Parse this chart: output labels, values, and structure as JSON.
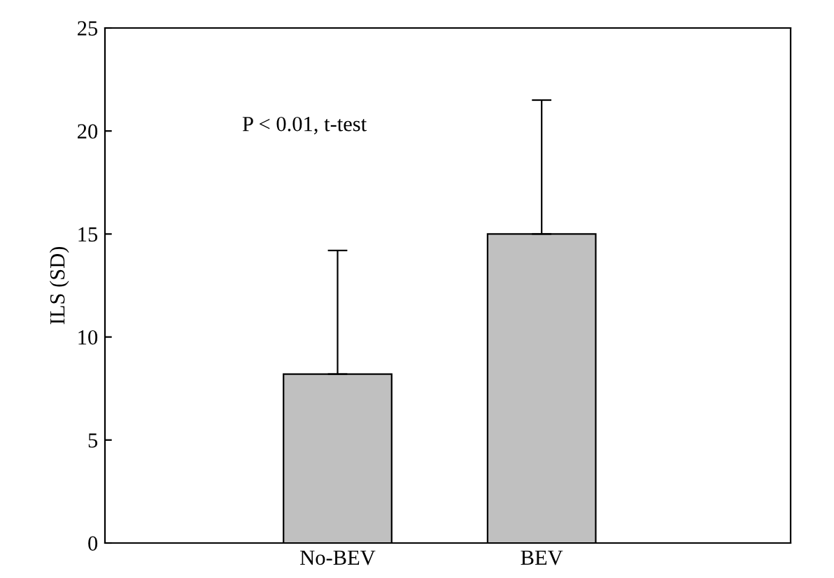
{
  "chart_data": {
    "type": "bar",
    "ylabel": "ILS (SD)",
    "categories": [
      "No-BEV",
      "BEV"
    ],
    "values": [
      8.2,
      15.0
    ],
    "errors": [
      [
        8.2,
        14.2
      ],
      [
        15.0,
        21.5
      ]
    ],
    "color": "#c0c0c0",
    "ylim": [
      0,
      25
    ],
    "yticks": [
      0,
      5,
      10,
      15,
      20,
      25
    ],
    "annotations": [
      "P < 0.01, t-test"
    ]
  }
}
